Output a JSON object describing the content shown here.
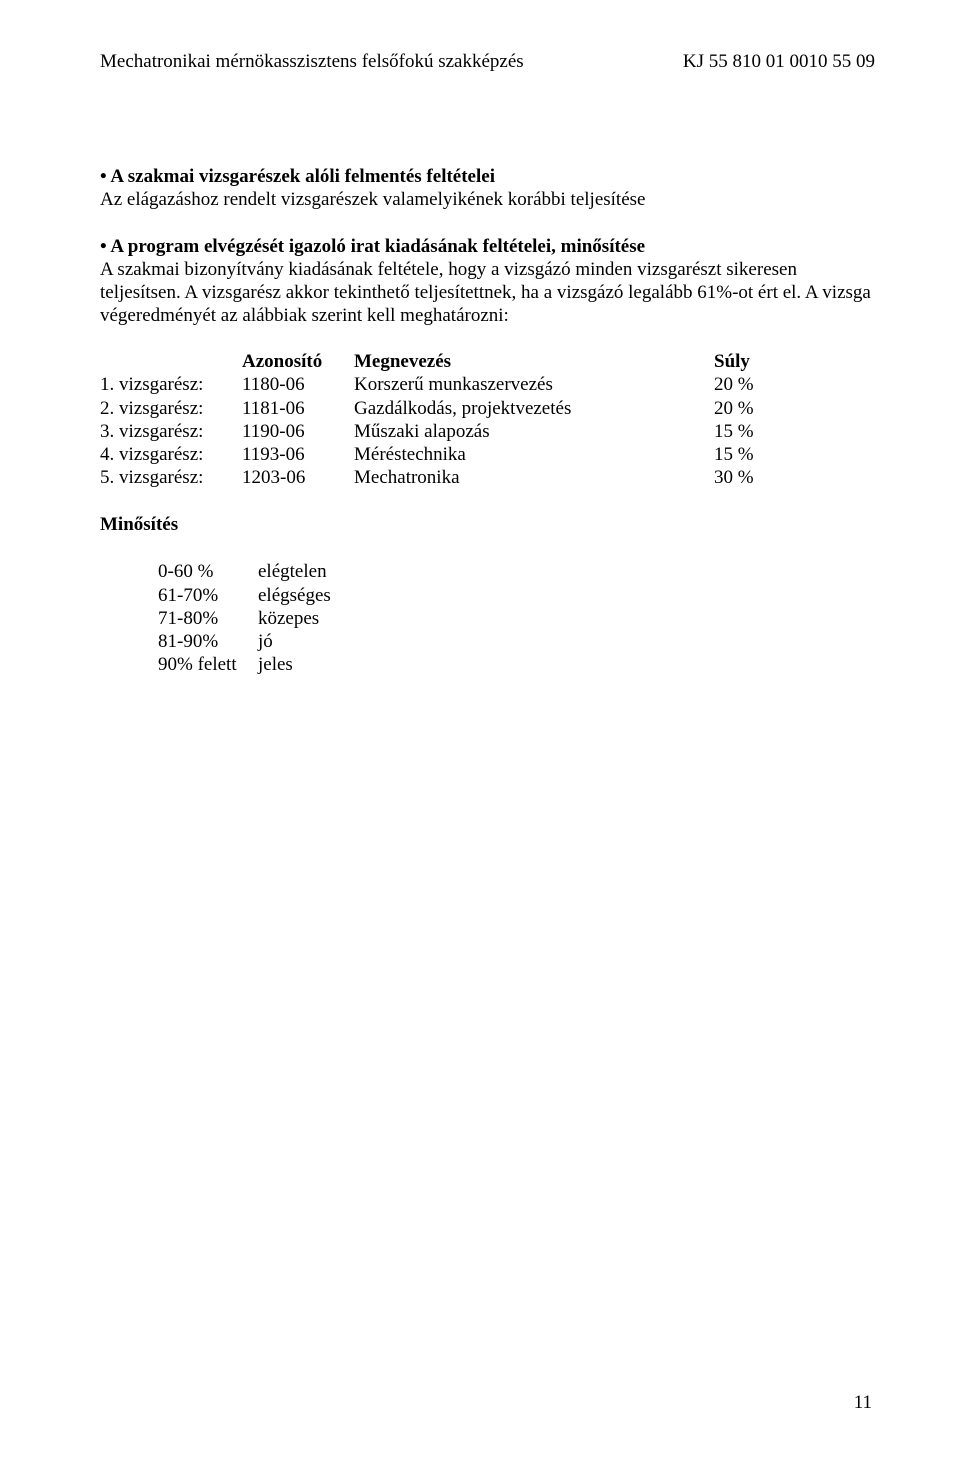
{
  "header": {
    "left": "Mechatronikai mérnökasszisztens felsőfokú szakképzés",
    "right": "KJ 55 810 01 0010 55 09"
  },
  "section1": {
    "bullet_heading": "• A szakmai vizsgarészek alóli felmentés feltételei",
    "text": "Az elágazáshoz rendelt vizsgarészek valamelyikének korábbi teljesítése"
  },
  "section2": {
    "bullet_heading": "• A program elvégzését igazoló irat kiadásának feltételei, minősítése",
    "text": "A szakmai bizonyítvány kiadásának feltétele, hogy a vizsgázó minden vizsgarészt sikeresen teljesítsen. A vizsgarész akkor tekinthető teljesítettnek, ha a vizsgázó legalább 61%-ot ért el. A vizsga végeredményét az alábbiak szerint kell meghatározni:"
  },
  "table": {
    "header": {
      "col2": "Azonosító",
      "col3": "Megnevezés",
      "col4": "Súly"
    },
    "rows": [
      {
        "c1": "1. vizsgarész:",
        "c2": "1180-06",
        "c3": "Korszerű munkaszervezés",
        "c4": "20 %"
      },
      {
        "c1": "2. vizsgarész:",
        "c2": "1181-06",
        "c3": "Gazdálkodás, projektvezetés",
        "c4": "20 %"
      },
      {
        "c1": "3. vizsgarész:",
        "c2": "1190-06",
        "c3": "Műszaki alapozás",
        "c4": "15 %"
      },
      {
        "c1": "4. vizsgarész:",
        "c2": "1193-06",
        "c3": "Méréstechnika",
        "c4": "15 %"
      },
      {
        "c1": "5. vizsgarész:",
        "c2": "1203-06",
        "c3": "Mechatronika",
        "c4": "30 %"
      }
    ]
  },
  "minosites_label": "Minősítés",
  "grades": [
    {
      "range": "0-60 %",
      "label": "elégtelen"
    },
    {
      "range": "61-70%",
      "label": "elégséges"
    },
    {
      "range": "71-80%",
      "label": "közepes"
    },
    {
      "range": "81-90%",
      "label": "jó"
    },
    {
      "range": "90% felett",
      "label": "jeles"
    }
  ],
  "page_number": "11"
}
